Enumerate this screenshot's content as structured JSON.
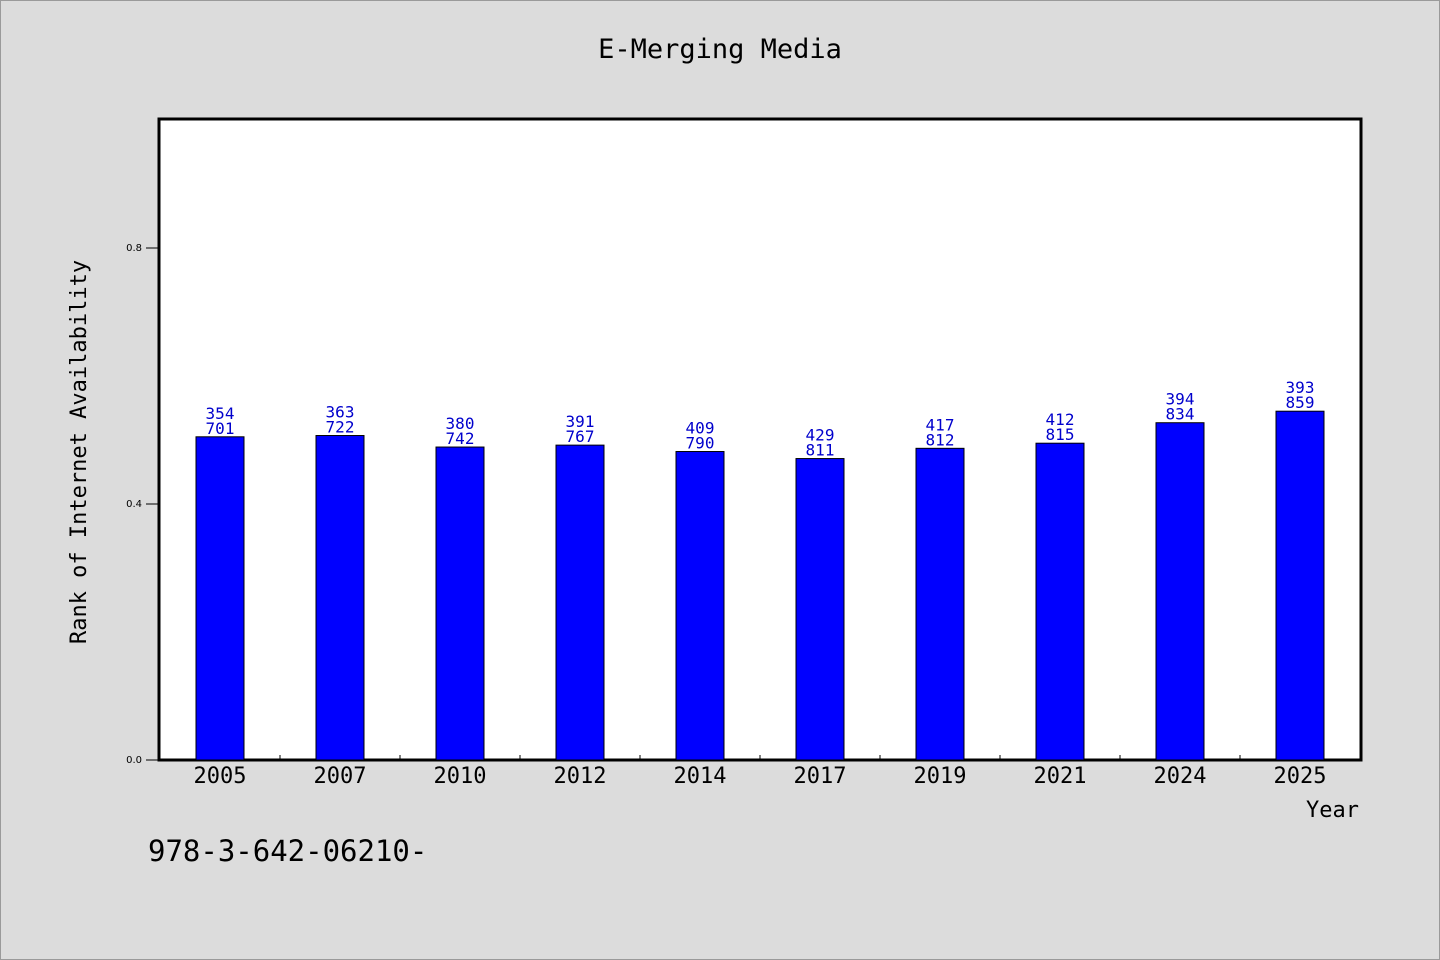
{
  "chart_data": {
    "type": "bar",
    "title": "E-Merging Media",
    "xlabel": "Year",
    "ylabel": "Rank of Internet Availability",
    "categories": [
      "2005",
      "2007",
      "2010",
      "2012",
      "2014",
      "2017",
      "2019",
      "2021",
      "2024",
      "2025"
    ],
    "values": [
      0.505,
      0.507,
      0.489,
      0.492,
      0.482,
      0.471,
      0.487,
      0.495,
      0.527,
      0.545
    ],
    "labels_top": [
      "354",
      "363",
      "380",
      "391",
      "409",
      "429",
      "417",
      "412",
      "394",
      "393"
    ],
    "labels_bottom": [
      "701",
      "722",
      "742",
      "767",
      "790",
      "811",
      "812",
      "815",
      "834",
      "859"
    ],
    "ylim": [
      0,
      1.0
    ],
    "yticks": [
      0.0,
      0.4,
      0.8
    ],
    "ytick_labels": [
      "0.0",
      "0.4",
      "0.8"
    ],
    "grid": false,
    "bar_color": "#0000ff",
    "label_color": "#0000cc"
  },
  "footnote": "978-3-642-06210-"
}
